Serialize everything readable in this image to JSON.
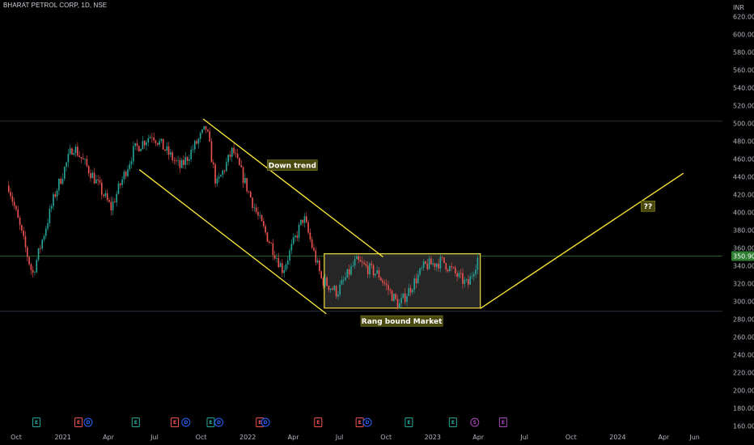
{
  "header": {
    "title": "BHARAT PETROL CORP, 1D, NSE"
  },
  "colors": {
    "background": "#000000",
    "up": "#26a69a",
    "down": "#ef5350",
    "trendline": "#ffeb3b",
    "range_box_fill": "#2a2a2a",
    "range_box_border": "#f0dc3c",
    "label_bg": "#4a4a10",
    "price_tag": "#2e7d32",
    "earnings": "#26a69a",
    "earnings_neg": "#ef5350",
    "dividend": "#2962ff",
    "split": "#ab47bc"
  },
  "chart_data": {
    "type": "candlestick",
    "currency": "INR",
    "last_price": "350.90",
    "ylim": [
      155,
      625
    ],
    "y_ticks": [
      "620.00",
      "600.00",
      "580.00",
      "560.00",
      "540.00",
      "520.00",
      "500.00",
      "480.00",
      "460.00",
      "440.00",
      "420.00",
      "400.00",
      "380.00",
      "360.00",
      "340.00",
      "320.00",
      "300.00",
      "280.00",
      "260.00",
      "240.00",
      "220.00",
      "200.00",
      "180.00",
      "160.00"
    ],
    "x_ticks": [
      "Oct",
      "2021",
      "Apr",
      "Jul",
      "Oct",
      "2022",
      "Apr",
      "Jul",
      "Oct",
      "2023",
      "Apr",
      "Jul",
      "Oct",
      "2024",
      "Apr",
      "Jun"
    ],
    "x_range": [
      "2020-10",
      "2024-06"
    ],
    "price_path": [
      {
        "t": "2020-09-15",
        "p": 430
      },
      {
        "t": "2020-11-01",
        "p": 330
      },
      {
        "t": "2020-12-15",
        "p": 420
      },
      {
        "t": "2021-01-20",
        "p": 475
      },
      {
        "t": "2021-03-01",
        "p": 440
      },
      {
        "t": "2021-04-05",
        "p": 405
      },
      {
        "t": "2021-05-20",
        "p": 470
      },
      {
        "t": "2021-06-25",
        "p": 488
      },
      {
        "t": "2021-08-20",
        "p": 450
      },
      {
        "t": "2021-10-10",
        "p": 495
      },
      {
        "t": "2021-10-30",
        "p": 430
      },
      {
        "t": "2021-12-01",
        "p": 470
      },
      {
        "t": "2022-01-20",
        "p": 395
      },
      {
        "t": "2022-03-10",
        "p": 335
      },
      {
        "t": "2022-04-20",
        "p": 395
      },
      {
        "t": "2022-05-25",
        "p": 325
      },
      {
        "t": "2022-06-25",
        "p": 310
      },
      {
        "t": "2022-08-01",
        "p": 345
      },
      {
        "t": "2022-09-15",
        "p": 330
      },
      {
        "t": "2022-10-25",
        "p": 295
      },
      {
        "t": "2022-12-15",
        "p": 340
      },
      {
        "t": "2023-01-20",
        "p": 345
      },
      {
        "t": "2023-02-15",
        "p": 330
      },
      {
        "t": "2023-03-10",
        "p": 318
      },
      {
        "t": "2023-03-31",
        "p": 350.9
      }
    ],
    "horizontal_lines": [
      {
        "y": 502.5,
        "color": "#2a2e39"
      },
      {
        "y": 350.9,
        "color": "#1b5e20"
      },
      {
        "y": 289,
        "color": "#2a2e39"
      }
    ],
    "trendlines": [
      {
        "from": {
          "t": "2021-10-05",
          "p": 505
        },
        "to": {
          "t": "2022-09-25",
          "p": 350
        }
      },
      {
        "from": {
          "t": "2021-06-01",
          "p": 448
        },
        "to": {
          "t": "2022-06-05",
          "p": 286
        }
      },
      {
        "from": {
          "t": "2023-04-05",
          "p": 292
        },
        "to": {
          "t": "2024-05-10",
          "p": 444
        }
      }
    ],
    "range_box": {
      "t1": "2022-06-01",
      "t2": "2023-04-05",
      "p_top": 353.5,
      "p_bottom": 292.5
    },
    "annotations": [
      {
        "text": "Down trend",
        "t": "2022-03-30",
        "p": 453
      },
      {
        "text": "Rang bound Market",
        "t": "2022-11-01",
        "p": 278
      },
      {
        "text": "??",
        "t": "2024-03-01",
        "p": 407
      }
    ],
    "events": [
      {
        "type": "E",
        "t": "2020-11-10",
        "kind": "earnings"
      },
      {
        "type": "E",
        "t": "2021-02-01",
        "kind": "earnings_neg"
      },
      {
        "type": "D",
        "t": "2021-02-20",
        "kind": "dividend"
      },
      {
        "type": "E",
        "t": "2021-05-25",
        "kind": "earnings"
      },
      {
        "type": "E",
        "t": "2021-08-10",
        "kind": "earnings_neg"
      },
      {
        "type": "D",
        "t": "2021-09-01",
        "kind": "dividend"
      },
      {
        "type": "E",
        "t": "2021-10-20",
        "kind": "earnings"
      },
      {
        "type": "D",
        "t": "2021-11-05",
        "kind": "dividend"
      },
      {
        "type": "E",
        "t": "2022-01-25",
        "kind": "earnings_neg"
      },
      {
        "type": "D",
        "t": "2022-02-05",
        "kind": "dividend"
      },
      {
        "type": "E",
        "t": "2022-05-20",
        "kind": "earnings_neg"
      },
      {
        "type": "E",
        "t": "2022-08-10",
        "kind": "earnings_neg"
      },
      {
        "type": "D",
        "t": "2022-08-25",
        "kind": "dividend"
      },
      {
        "type": "E",
        "t": "2022-11-15",
        "kind": "earnings"
      },
      {
        "type": "E",
        "t": "2023-02-10",
        "kind": "earnings"
      },
      {
        "type": "S",
        "t": "2023-03-25",
        "kind": "split"
      },
      {
        "type": "E",
        "t": "2023-05-20",
        "kind": "split"
      }
    ]
  }
}
